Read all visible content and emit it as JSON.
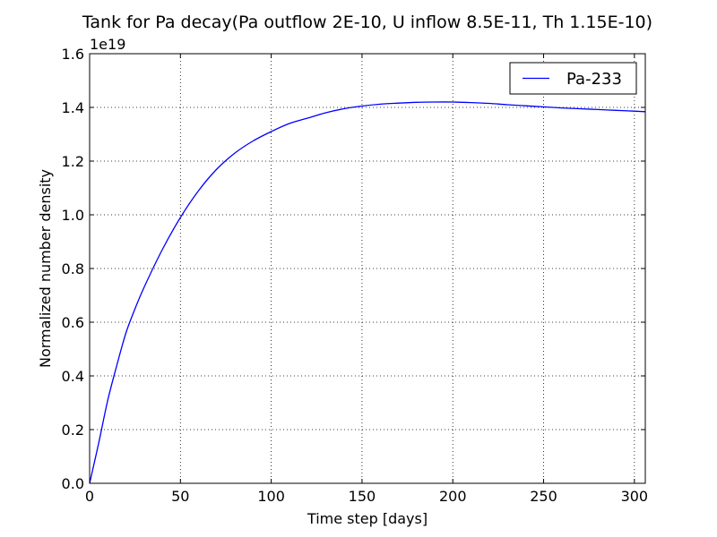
{
  "chart_data": {
    "type": "line",
    "title": "Tank for Pa decay(Pa outflow 2E-10, U inflow 8.5E-11, Th 1.15E-10)",
    "xlabel": "Time step [days]",
    "ylabel": "Normalized number density",
    "y_offset_label": "1e19",
    "xlim": [
      0,
      306
    ],
    "ylim": [
      0,
      1.6
    ],
    "x_ticks": [
      0,
      50,
      100,
      150,
      200,
      250,
      300
    ],
    "x_tick_labels": [
      "0",
      "50",
      "100",
      "150",
      "200",
      "250",
      "300"
    ],
    "y_ticks": [
      0.0,
      0.2,
      0.4,
      0.6,
      0.8,
      1.0,
      1.2,
      1.4,
      1.6
    ],
    "y_tick_labels": [
      "0.0",
      "0.2",
      "0.4",
      "0.6",
      "0.8",
      "1.0",
      "1.2",
      "1.4",
      "1.6"
    ],
    "grid": true,
    "legend_position": "top-right",
    "series": [
      {
        "name": "Pa-233",
        "color": "#0000ff",
        "x": [
          0,
          5,
          10,
          15,
          20,
          25,
          30,
          40,
          50,
          60,
          70,
          80,
          90,
          100,
          110,
          120,
          130,
          140,
          150,
          160,
          170,
          180,
          190,
          200,
          210,
          220,
          230,
          240,
          250,
          260,
          270,
          280,
          290,
          300,
          306
        ],
        "y": [
          0.0,
          0.15,
          0.31,
          0.44,
          0.56,
          0.65,
          0.73,
          0.87,
          0.99,
          1.09,
          1.17,
          1.23,
          1.275,
          1.31,
          1.34,
          1.36,
          1.38,
          1.395,
          1.405,
          1.412,
          1.416,
          1.419,
          1.42,
          1.42,
          1.418,
          1.415,
          1.41,
          1.406,
          1.402,
          1.398,
          1.395,
          1.392,
          1.389,
          1.386,
          1.384
        ]
      }
    ]
  }
}
